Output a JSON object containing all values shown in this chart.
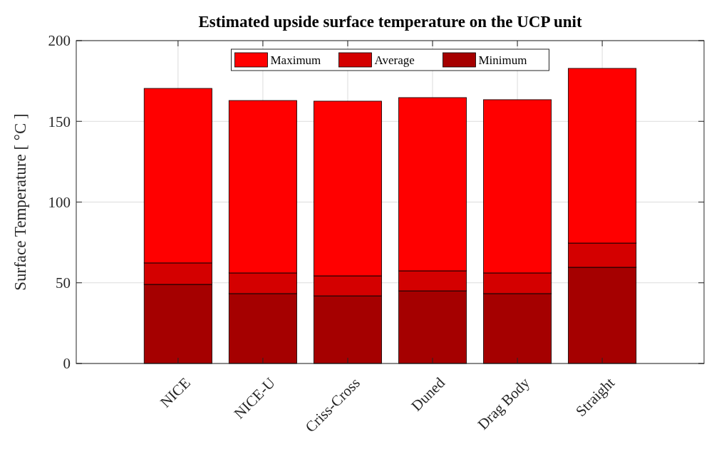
{
  "chart_data": {
    "type": "bar",
    "title": "Estimated upside surface temperature on the UCP unit",
    "ylabel": "Surface Temperature [ °C ]",
    "categories": [
      "NICE",
      "NICE-U",
      "Criss-Cross",
      "Duned",
      "Drag Body",
      "Straight"
    ],
    "stacked": true,
    "series": [
      {
        "name": "Minimum",
        "color": "#a50000",
        "values": [
          49,
          43.3,
          41.9,
          45,
          43.3,
          59.6
        ]
      },
      {
        "name": "Average",
        "color": "#d40000",
        "values": [
          13.3,
          12.8,
          12.4,
          12.4,
          12.8,
          15
        ]
      },
      {
        "name": "Maximum",
        "color": "#ff0000",
        "values": [
          108.1,
          106.8,
          108.2,
          107.3,
          107.3,
          108.2
        ]
      }
    ],
    "ylim": [
      0,
      200
    ],
    "yticks": [
      0,
      50,
      100,
      150,
      200
    ],
    "grid": true,
    "legend": "top"
  }
}
